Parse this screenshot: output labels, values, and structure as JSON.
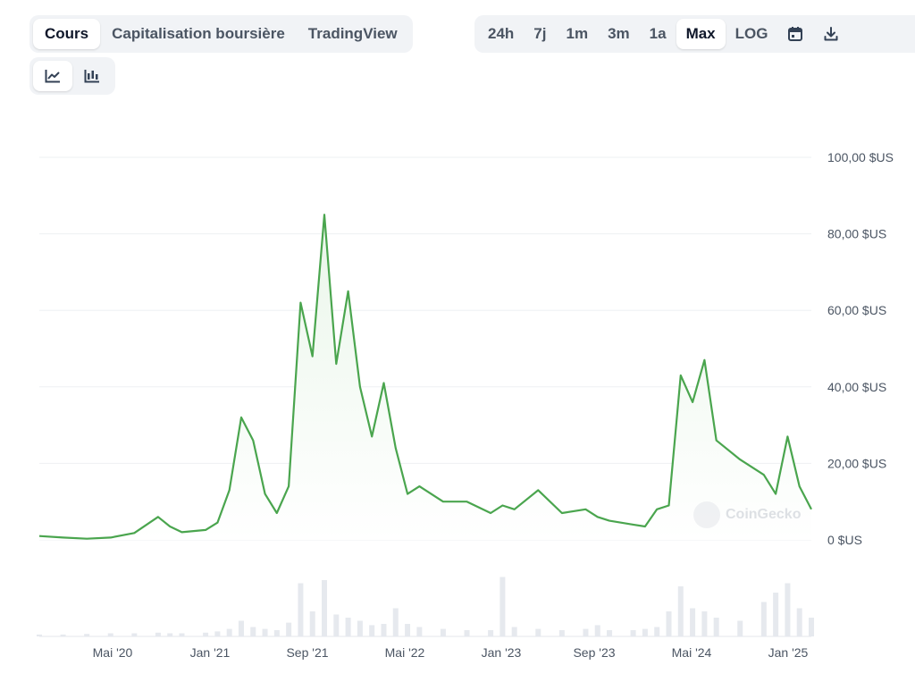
{
  "tabs": [
    "Cours",
    "Capitalisation boursière",
    "TradingView"
  ],
  "active_tab": 0,
  "ranges": [
    "24h",
    "7j",
    "1m",
    "3m",
    "1a",
    "Max",
    "LOG"
  ],
  "active_range": 5,
  "icons": {
    "calendar": "calendar-icon",
    "download": "download-icon",
    "line_chart": "line-chart-icon",
    "candlestick_chart": "candlestick-chart-icon"
  },
  "watermark": "CoinGecko",
  "colors": {
    "line": "#4aa54e",
    "area": "#eaf6ea",
    "volume": "#e6e9ee",
    "grid": "#eef0f3"
  },
  "chart_data": {
    "type": "line",
    "y_ticks": [
      "100,00 $US",
      "80,00 $US",
      "60,00 $US",
      "40,00 $US",
      "20,00 $US",
      "0 $US"
    ],
    "x_ticks": [
      "Mai '20",
      "Jan '21",
      "Sep '21",
      "Mai '22",
      "Jan '23",
      "Sep '23",
      "Mai '24",
      "Jan '25"
    ],
    "ylim": [
      0,
      100
    ],
    "x_range": [
      "2019-10",
      "2025-03"
    ],
    "grid": true,
    "series": [
      {
        "x": [
          "2019-10",
          "2019-12",
          "2020-02",
          "2020-04",
          "2020-06",
          "2020-08",
          "2020-09",
          "2020-10",
          "2020-12",
          "2021-01",
          "2021-02",
          "2021-03",
          "2021-04",
          "2021-05",
          "2021-06",
          "2021-07",
          "2021-08",
          "2021-09",
          "2021-10",
          "2021-11",
          "2021-12",
          "2022-01",
          "2022-02",
          "2022-03",
          "2022-04",
          "2022-05",
          "2022-06",
          "2022-08",
          "2022-10",
          "2022-12",
          "2023-01",
          "2023-02",
          "2023-04",
          "2023-06",
          "2023-08",
          "2023-09",
          "2023-10",
          "2023-12",
          "2024-01",
          "2024-02",
          "2024-03",
          "2024-04",
          "2024-05",
          "2024-06",
          "2024-07",
          "2024-09",
          "2024-11",
          "2024-12",
          "2025-01",
          "2025-02",
          "2025-03"
        ],
        "y": [
          1.0,
          0.6,
          0.3,
          0.6,
          1.8,
          6.0,
          3.5,
          2.0,
          2.6,
          4.5,
          13,
          32,
          26,
          12,
          7,
          14,
          62,
          48,
          85,
          46,
          65,
          40,
          27,
          41,
          24,
          12,
          14,
          10,
          10,
          7,
          9,
          8,
          13,
          7,
          8,
          6,
          5,
          4,
          3.5,
          8,
          9,
          43,
          36,
          47,
          26,
          21,
          17,
          12,
          27,
          14,
          8
        ]
      }
    ],
    "volume": [
      0.03,
      0.03,
      0.04,
      0.05,
      0.05,
      0.06,
      0.05,
      0.05,
      0.06,
      0.08,
      0.12,
      0.25,
      0.15,
      0.12,
      0.1,
      0.22,
      0.85,
      0.4,
      0.9,
      0.35,
      0.3,
      0.25,
      0.18,
      0.2,
      0.45,
      0.2,
      0.15,
      0.12,
      0.1,
      0.1,
      0.95,
      0.15,
      0.12,
      0.1,
      0.12,
      0.18,
      0.1,
      0.1,
      0.12,
      0.15,
      0.4,
      0.8,
      0.45,
      0.4,
      0.3,
      0.25,
      0.55,
      0.7,
      0.85,
      0.45,
      0.3
    ]
  }
}
